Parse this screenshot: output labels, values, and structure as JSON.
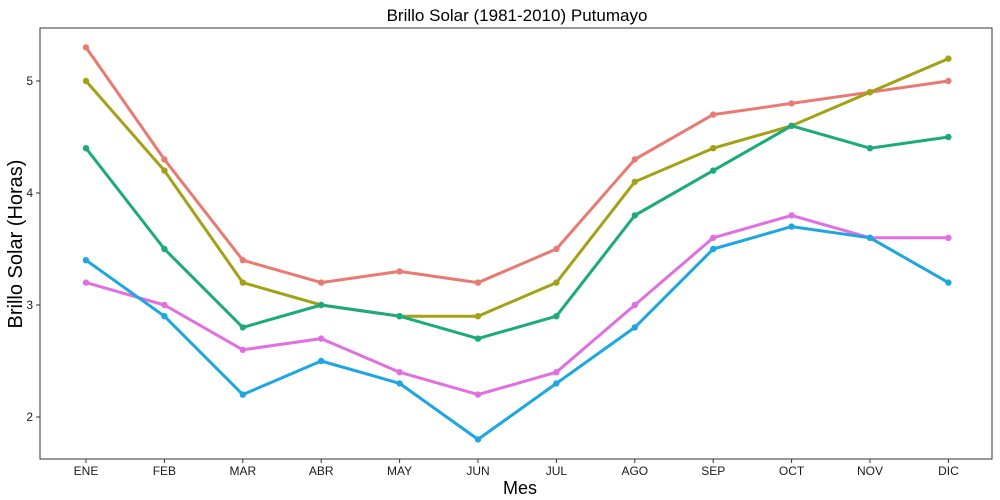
{
  "chart_data": {
    "type": "line",
    "title": "Brillo Solar (1981-2010)  Putumayo",
    "xlabel": "Mes",
    "ylabel": "Brillo Solar (Horas)",
    "categories": [
      "ENE",
      "FEB",
      "MAR",
      "ABR",
      "MAY",
      "JUN",
      "JUL",
      "AGO",
      "SEP",
      "OCT",
      "NOV",
      "DIC"
    ],
    "yticks": [
      2,
      3,
      4,
      5
    ],
    "ylim": [
      1.6,
      5.5
    ],
    "grid": false,
    "legend": "none",
    "series": [
      {
        "color": "#E87A72",
        "values": [
          5.3,
          4.3,
          3.4,
          3.2,
          3.3,
          3.2,
          3.5,
          4.3,
          4.7,
          4.8,
          4.9,
          5.0
        ]
      },
      {
        "color": "#A3A117",
        "values": [
          5.0,
          4.2,
          3.2,
          3.0,
          2.9,
          2.9,
          3.2,
          4.1,
          4.4,
          4.6,
          4.9,
          5.2
        ]
      },
      {
        "color": "#1BAA7A",
        "values": [
          4.4,
          3.5,
          2.8,
          3.0,
          2.9,
          2.7,
          2.9,
          3.8,
          4.2,
          4.6,
          4.4,
          4.5
        ]
      },
      {
        "color": "#E06FE0",
        "values": [
          3.2,
          3.0,
          2.6,
          2.7,
          2.4,
          2.2,
          2.4,
          3.0,
          3.6,
          3.8,
          3.6,
          3.6
        ]
      },
      {
        "color": "#1DA6E0",
        "values": [
          3.4,
          2.9,
          2.2,
          2.5,
          2.3,
          1.8,
          2.3,
          2.8,
          3.5,
          3.7,
          3.6,
          3.2
        ]
      }
    ]
  }
}
